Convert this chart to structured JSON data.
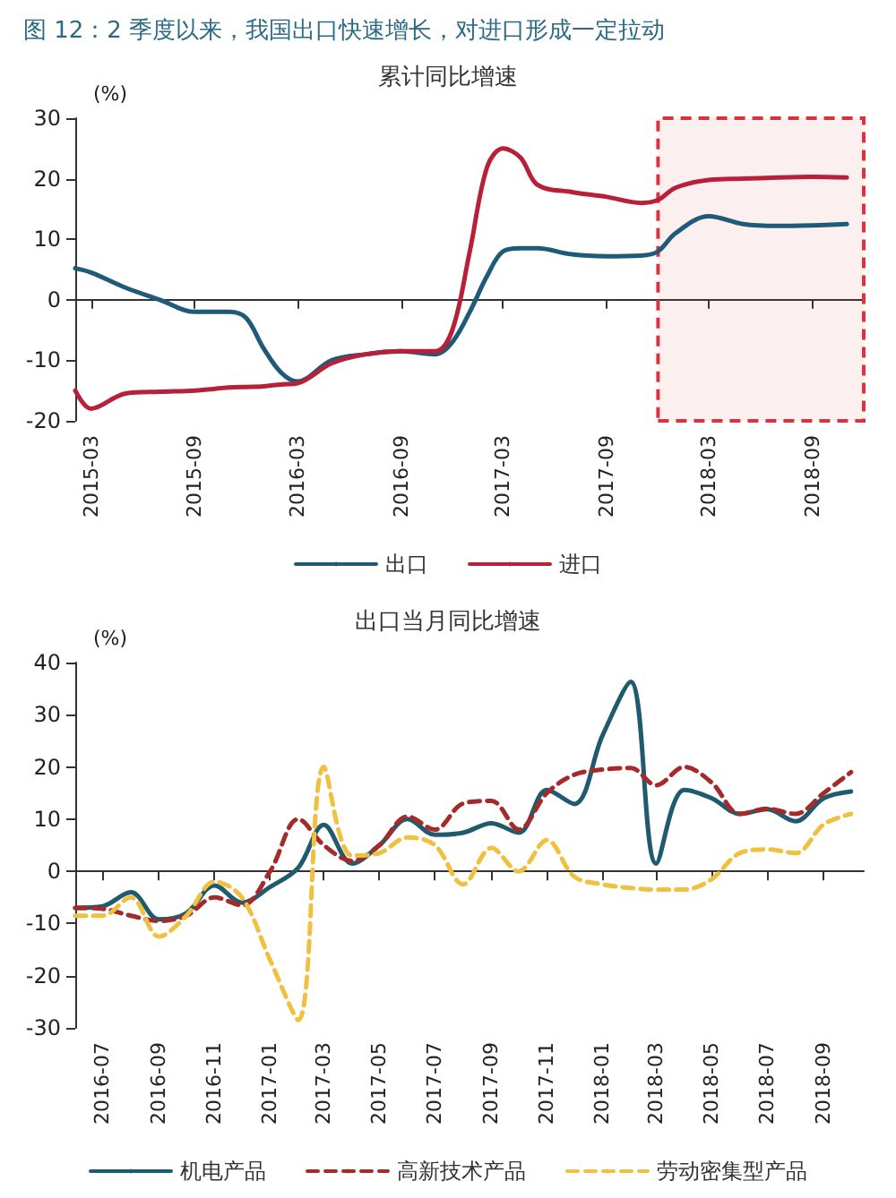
{
  "chart_data": [
    {
      "type": "line",
      "title": "图 12：2 季度以来，我国出口快速增长，对进口形成一定拉动",
      "subtitle": "累计同比增速",
      "ylabel": "(%)",
      "x": [
        "2015-02",
        "2015-03",
        "2015-05",
        "2015-07",
        "2015-09",
        "2015-11",
        "2015-12",
        "2016-01",
        "2016-02",
        "2016-03",
        "2016-05",
        "2016-07",
        "2016-09",
        "2016-11",
        "2016-12",
        "2017-01",
        "2017-02",
        "2017-03",
        "2017-04",
        "2017-05",
        "2017-07",
        "2017-09",
        "2017-11",
        "2017-12",
        "2018-01",
        "2018-03",
        "2018-05",
        "2018-07",
        "2018-09",
        "2018-11"
      ],
      "series": [
        {
          "name": "出口",
          "color": "#1f5a78",
          "line_style": "solid",
          "values": [
            5.2,
            4.5,
            2,
            0,
            -2,
            -2,
            -3,
            -8,
            -12,
            -13.5,
            -10,
            -9,
            -8.5,
            -9,
            -7,
            -2,
            4,
            8,
            8.5,
            8.5,
            7.5,
            7.2,
            7.3,
            8,
            11,
            13.8,
            12.5,
            12.2,
            12.3,
            12.5
          ]
        },
        {
          "name": "进口",
          "color": "#b8203a",
          "line_style": "solid",
          "values": [
            -15,
            -18,
            -15.5,
            -15.2,
            -15,
            -14.5,
            -14.4,
            -14.3,
            -14,
            -13.8,
            -10.5,
            -9,
            -8.5,
            -8.5,
            -5,
            8,
            22,
            25,
            23.5,
            19,
            17.8,
            17,
            16,
            16.5,
            18.5,
            19.8,
            20,
            20.2,
            20.3,
            20.2
          ]
        }
      ],
      "xlim": [
        "2015-02",
        "2018-12"
      ],
      "xticks": [
        "2015-03",
        "2015-09",
        "2016-03",
        "2016-09",
        "2017-03",
        "2017-09",
        "2018-03",
        "2018-09"
      ],
      "ylim": [
        -20,
        30
      ],
      "yticks": [
        -20,
        -10,
        0,
        10,
        20,
        30
      ],
      "bands": [
        {
          "axis": "x",
          "from": "2017-12",
          "to": "2018-12",
          "color": "#d9333f"
        }
      ],
      "legend": "bottom",
      "marker": "none"
    },
    {
      "type": "line",
      "subtitle": "出口当月同比增速",
      "ylabel": "(%)",
      "x": [
        "2016-06",
        "2016-07",
        "2016-08",
        "2016-09",
        "2016-10",
        "2016-11",
        "2016-12",
        "2017-01",
        "2017-02",
        "2017-03",
        "2017-04",
        "2017-05",
        "2017-06",
        "2017-07",
        "2017-08",
        "2017-09",
        "2017-10",
        "2017-11",
        "2017-12",
        "2018-01",
        "2018-02",
        "2018-03",
        "2018-04",
        "2018-05",
        "2018-06",
        "2018-07",
        "2018-08",
        "2018-09",
        "2018-10"
      ],
      "series": [
        {
          "name": "机电产品",
          "color": "#1f5a6e",
          "line_style": "solid",
          "values": [
            -7,
            -6.7,
            -4,
            -9.2,
            -8,
            -2.7,
            -6,
            -3,
            0.7,
            8.9,
            1.5,
            5,
            10,
            7,
            7.4,
            9.2,
            7.4,
            15.6,
            12.9,
            26,
            36.3,
            1.5,
            15.6,
            14,
            11,
            11.9,
            9.6,
            14,
            15.3
          ]
        },
        {
          "name": "高新技术产品",
          "color": "#a52a2a",
          "line_style": "dashed",
          "values": [
            -7,
            -7.2,
            -8.5,
            -9.5,
            -8.5,
            -5,
            -6.5,
            0,
            10,
            5,
            2,
            5,
            10.5,
            8,
            13,
            13.5,
            8,
            15,
            18.5,
            19.5,
            19.8,
            16.5,
            20,
            17,
            11,
            12,
            11,
            15,
            19
          ]
        },
        {
          "name": "劳动密集型产品",
          "color": "#f0c040",
          "line_style": "dashed",
          "values": [
            -8.5,
            -8.5,
            -5,
            -12.5,
            -8.5,
            -2,
            -5,
            -17,
            -28.5,
            20,
            3,
            3.5,
            6.5,
            5,
            -2.5,
            4.5,
            0,
            6,
            -1,
            -2.5,
            -3.2,
            -3.5,
            -3.5,
            -1.5,
            3.5,
            4.2,
            3.5,
            9,
            11
          ]
        }
      ],
      "xlim": [
        "2016-06",
        "2018-10-15"
      ],
      "xticks": [
        "2016-07",
        "2016-09",
        "2016-11",
        "2017-01",
        "2017-03",
        "2017-05",
        "2017-07",
        "2017-09",
        "2017-11",
        "2018-01",
        "2018-03",
        "2018-05",
        "2018-07",
        "2018-09"
      ],
      "ylim": [
        -30,
        40
      ],
      "yticks": [
        -30,
        -20,
        -10,
        0,
        10,
        20,
        30,
        40
      ],
      "legend": "bottom",
      "marker": "none"
    }
  ]
}
